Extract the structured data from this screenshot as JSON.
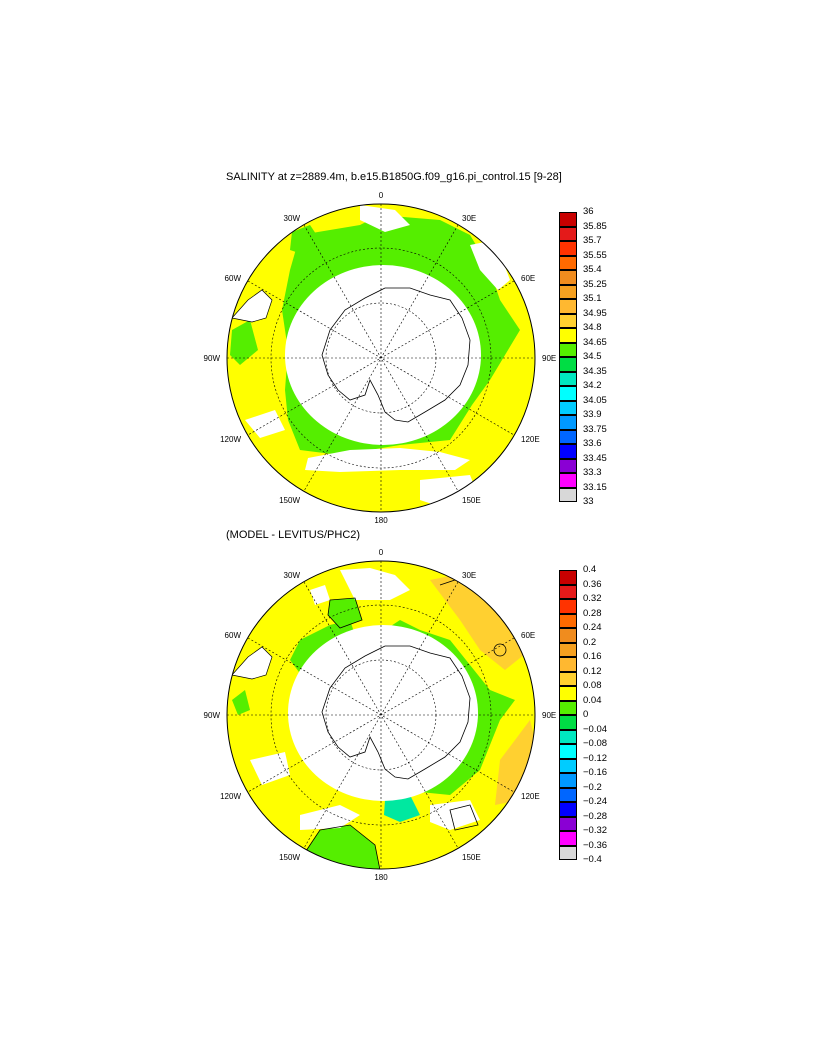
{
  "panels": [
    {
      "title": "SALINITY at z=2889.4m, b.e15.B1850G.f09_g16.pi_control.15 [9-28]",
      "lon_labels": [
        "0",
        "30E",
        "60E",
        "90E",
        "120E",
        "150E",
        "180",
        "150W",
        "120W",
        "90W",
        "60W",
        "30W"
      ],
      "colorbar": {
        "labels": [
          "36",
          "35.85",
          "35.7",
          "35.55",
          "35.4",
          "35.25",
          "35.1",
          "34.95",
          "34.8",
          "34.65",
          "34.5",
          "34.35",
          "34.2",
          "34.05",
          "33.9",
          "33.75",
          "33.6",
          "33.45",
          "33.3",
          "33.15",
          "33"
        ],
        "colors": [
          "#c80000",
          "#e41a1a",
          "#ff3300",
          "#ff6a00",
          "#f08c1e",
          "#f5a020",
          "#ffb830",
          "#ffd030",
          "#ffff00",
          "#55ee00",
          "#00dd44",
          "#00e8c0",
          "#00ffff",
          "#00ccff",
          "#0099ff",
          "#0066ff",
          "#0000ff",
          "#8a00d4",
          "#ff00ff",
          "#d8d8d8",
          "#707070"
        ]
      }
    },
    {
      "title": "(MODEL - LEVITUS/PHC2)",
      "lon_labels": [
        "0",
        "30E",
        "60E",
        "90E",
        "120E",
        "150E",
        "180",
        "150W",
        "120W",
        "90W",
        "60W",
        "30W"
      ],
      "colorbar": {
        "labels": [
          "0.4",
          "0.36",
          "0.32",
          "0.28",
          "0.24",
          "0.2",
          "0.16",
          "0.12",
          "0.08",
          "0.04",
          "0",
          "−0.04",
          "−0.08",
          "−0.12",
          "−0.16",
          "−0.2",
          "−0.24",
          "−0.28",
          "−0.32",
          "−0.36",
          "−0.4"
        ],
        "colors": [
          "#c80000",
          "#e41a1a",
          "#ff3300",
          "#ff6a00",
          "#f08c1e",
          "#f5a020",
          "#ffb830",
          "#ffd030",
          "#ffff00",
          "#55ee00",
          "#00dd44",
          "#00e8c0",
          "#00ffff",
          "#00ccff",
          "#0099ff",
          "#0066ff",
          "#0000ff",
          "#8a00d4",
          "#ff00ff",
          "#d8d8d8",
          "#707070"
        ]
      }
    }
  ],
  "colors": {
    "yellow": "#ffff00",
    "green": "#55ee00",
    "orange": "#ffd030",
    "teal": "#00e8a0"
  }
}
